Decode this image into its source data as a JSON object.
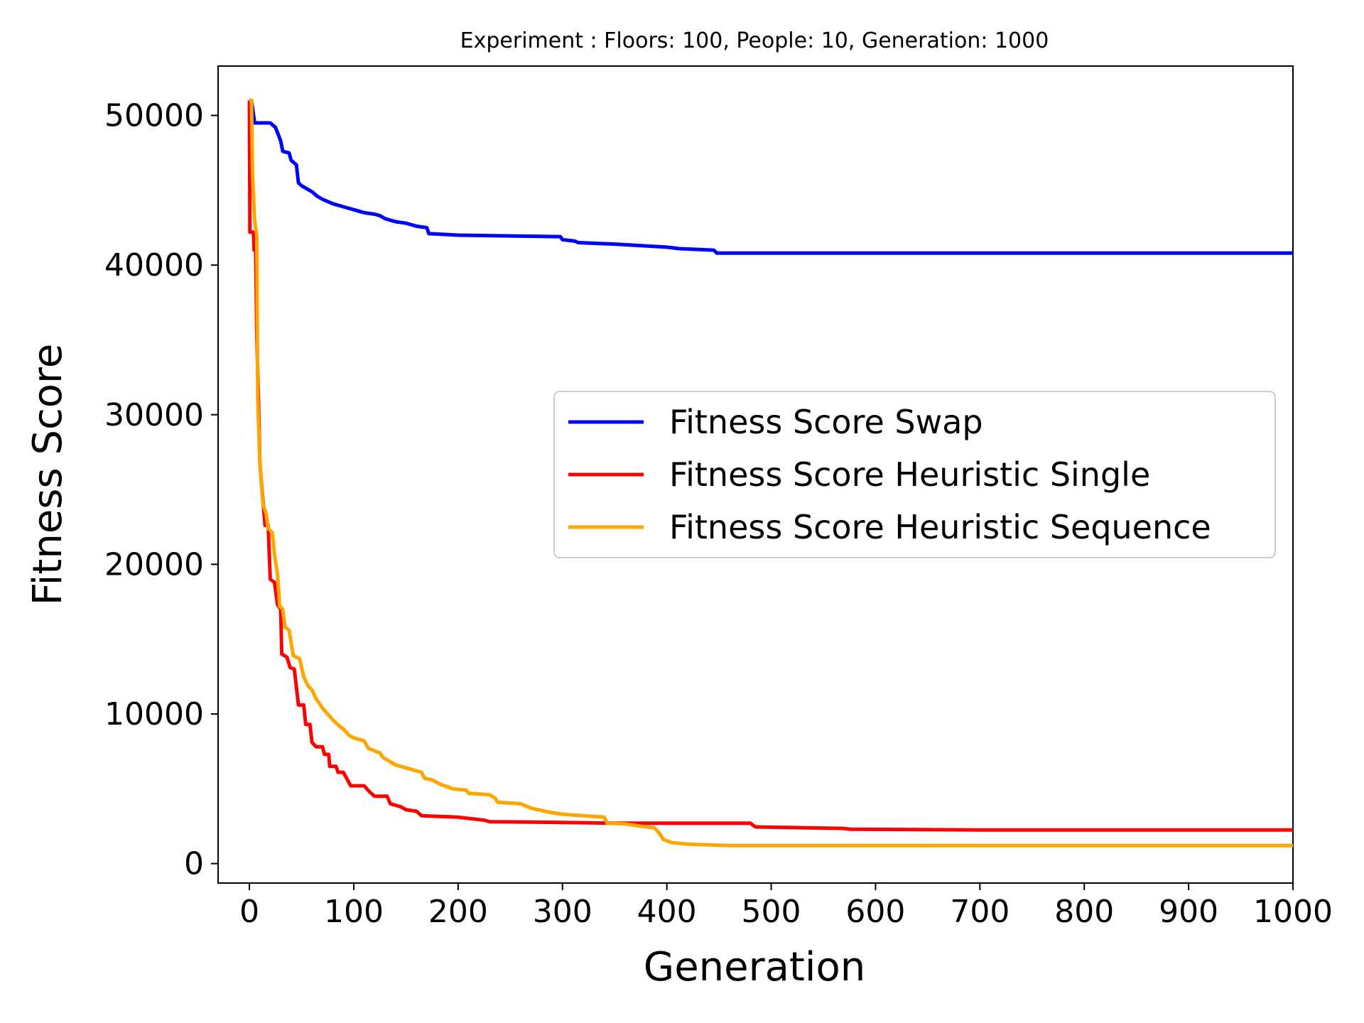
{
  "chart_data": {
    "type": "line",
    "title": "Experiment : Floors: 100, People: 10, Generation: 1000",
    "xlabel": "Generation",
    "ylabel": "Fitness Score",
    "xlim": [
      -30,
      1000
    ],
    "ylim": [
      -1300,
      53300
    ],
    "xticks": [
      0,
      100,
      200,
      300,
      400,
      500,
      600,
      700,
      800,
      900,
      1000
    ],
    "yticks": [
      0,
      10000,
      20000,
      30000,
      40000,
      50000
    ],
    "xtick_labels": [
      "0",
      "100",
      "200",
      "300",
      "400",
      "500",
      "600",
      "700",
      "800",
      "900",
      "1000"
    ],
    "ytick_labels": [
      "0",
      "10000",
      "20000",
      "30000",
      "40000",
      "50000"
    ],
    "grid": false,
    "legend_position": "center-right",
    "series": [
      {
        "name": "Fitness Score Swap",
        "color": "#0000ff",
        "points": [
          [
            0,
            51000
          ],
          [
            2,
            51000
          ],
          [
            5,
            49500
          ],
          [
            10,
            49500
          ],
          [
            15,
            49500
          ],
          [
            20,
            49500
          ],
          [
            25,
            49200
          ],
          [
            30,
            48300
          ],
          [
            32,
            47600
          ],
          [
            38,
            47500
          ],
          [
            40,
            47000
          ],
          [
            45,
            46700
          ],
          [
            47,
            45500
          ],
          [
            50,
            45300
          ],
          [
            55,
            45100
          ],
          [
            60,
            44900
          ],
          [
            65,
            44600
          ],
          [
            70,
            44400
          ],
          [
            80,
            44100
          ],
          [
            90,
            43900
          ],
          [
            100,
            43700
          ],
          [
            110,
            43500
          ],
          [
            120,
            43400
          ],
          [
            125,
            43300
          ],
          [
            130,
            43100
          ],
          [
            140,
            42900
          ],
          [
            150,
            42800
          ],
          [
            160,
            42600
          ],
          [
            170,
            42500
          ],
          [
            172,
            42100
          ],
          [
            200,
            42000
          ],
          [
            250,
            41950
          ],
          [
            298,
            41900
          ],
          [
            300,
            41700
          ],
          [
            312,
            41600
          ],
          [
            315,
            41500
          ],
          [
            350,
            41400
          ],
          [
            400,
            41200
          ],
          [
            412,
            41100
          ],
          [
            445,
            41000
          ],
          [
            448,
            40800
          ],
          [
            480,
            40800
          ],
          [
            600,
            40800
          ],
          [
            1000,
            40800
          ]
        ]
      },
      {
        "name": "Fitness Score Heuristic Single",
        "color": "#ff0000",
        "points": [
          [
            0,
            51000
          ],
          [
            0.5,
            42200
          ],
          [
            4,
            42200
          ],
          [
            4.5,
            41000
          ],
          [
            6,
            41000
          ],
          [
            7,
            35500
          ],
          [
            9,
            30000
          ],
          [
            10,
            26800
          ],
          [
            12,
            25100
          ],
          [
            15,
            22600
          ],
          [
            18,
            22600
          ],
          [
            20,
            19000
          ],
          [
            24,
            18800
          ],
          [
            27,
            17300
          ],
          [
            30,
            17000
          ],
          [
            31,
            14000
          ],
          [
            36,
            13800
          ],
          [
            39,
            13100
          ],
          [
            43,
            13000
          ],
          [
            45,
            11800
          ],
          [
            47,
            10600
          ],
          [
            52,
            10600
          ],
          [
            54,
            9300
          ],
          [
            58,
            9300
          ],
          [
            60,
            8100
          ],
          [
            64,
            7800
          ],
          [
            70,
            7800
          ],
          [
            72,
            7300
          ],
          [
            76,
            7300
          ],
          [
            77,
            6500
          ],
          [
            83,
            6500
          ],
          [
            85,
            6100
          ],
          [
            90,
            6100
          ],
          [
            94,
            5600
          ],
          [
            97,
            5200
          ],
          [
            110,
            5200
          ],
          [
            115,
            4800
          ],
          [
            120,
            4500
          ],
          [
            132,
            4500
          ],
          [
            135,
            4000
          ],
          [
            145,
            3800
          ],
          [
            150,
            3600
          ],
          [
            160,
            3500
          ],
          [
            165,
            3200
          ],
          [
            200,
            3100
          ],
          [
            225,
            2900
          ],
          [
            230,
            2800
          ],
          [
            300,
            2750
          ],
          [
            350,
            2700
          ],
          [
            480,
            2700
          ],
          [
            485,
            2450
          ],
          [
            570,
            2350
          ],
          [
            575,
            2300
          ],
          [
            700,
            2250
          ],
          [
            1000,
            2250
          ]
        ]
      },
      {
        "name": "Fitness Score Heuristic Sequence",
        "color": "#ffa500",
        "points": [
          [
            0,
            51000
          ],
          [
            2,
            51000
          ],
          [
            3,
            46000
          ],
          [
            5,
            43000
          ],
          [
            7,
            42000
          ],
          [
            8,
            31000
          ],
          [
            10,
            26800
          ],
          [
            13,
            24000
          ],
          [
            16,
            23400
          ],
          [
            18,
            22400
          ],
          [
            22,
            22100
          ],
          [
            24,
            20700
          ],
          [
            27,
            19300
          ],
          [
            29,
            17200
          ],
          [
            32,
            17000
          ],
          [
            34,
            15800
          ],
          [
            38,
            15600
          ],
          [
            42,
            13900
          ],
          [
            48,
            13700
          ],
          [
            52,
            12500
          ],
          [
            56,
            11900
          ],
          [
            60,
            11600
          ],
          [
            64,
            11000
          ],
          [
            70,
            10400
          ],
          [
            80,
            9600
          ],
          [
            86,
            9200
          ],
          [
            90,
            9000
          ],
          [
            95,
            8600
          ],
          [
            100,
            8400
          ],
          [
            110,
            8200
          ],
          [
            114,
            7700
          ],
          [
            125,
            7400
          ],
          [
            128,
            7100
          ],
          [
            135,
            6800
          ],
          [
            140,
            6600
          ],
          [
            150,
            6400
          ],
          [
            160,
            6200
          ],
          [
            165,
            6100
          ],
          [
            168,
            5700
          ],
          [
            175,
            5600
          ],
          [
            183,
            5300
          ],
          [
            195,
            5000
          ],
          [
            208,
            4900
          ],
          [
            210,
            4700
          ],
          [
            230,
            4600
          ],
          [
            235,
            4400
          ],
          [
            238,
            4100
          ],
          [
            260,
            4000
          ],
          [
            270,
            3700
          ],
          [
            290,
            3400
          ],
          [
            300,
            3300
          ],
          [
            320,
            3200
          ],
          [
            340,
            3100
          ],
          [
            343,
            2700
          ],
          [
            360,
            2650
          ],
          [
            375,
            2500
          ],
          [
            388,
            2400
          ],
          [
            392,
            2100
          ],
          [
            397,
            1600
          ],
          [
            405,
            1400
          ],
          [
            420,
            1300
          ],
          [
            440,
            1250
          ],
          [
            460,
            1200
          ],
          [
            1000,
            1200
          ]
        ]
      }
    ]
  }
}
